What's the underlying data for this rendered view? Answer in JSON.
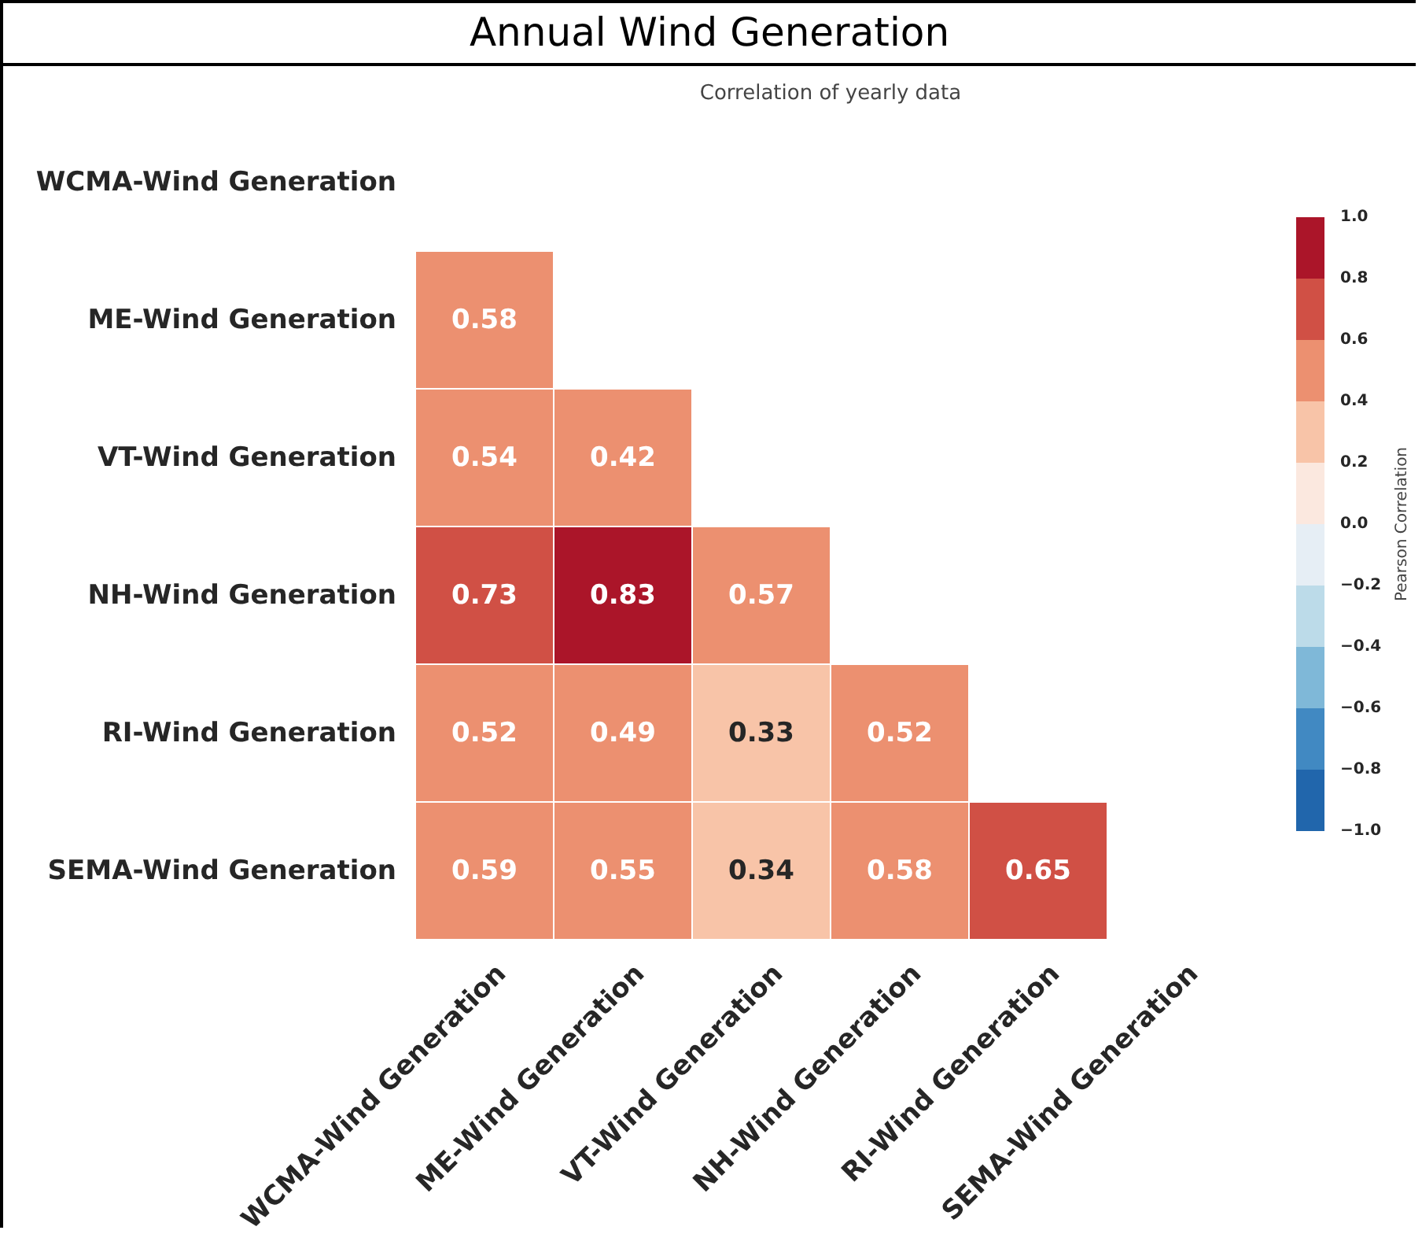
{
  "chart_data": {
    "type": "heatmap",
    "title": "Annual Wind Generation",
    "subtitle": "Correlation of yearly data",
    "categories": [
      "WCMA-Wind Generation",
      "ME-Wind Generation",
      "VT-Wind Generation",
      "NH-Wind Generation",
      "RI-Wind Generation",
      "SEMA-Wind Generation"
    ],
    "y_categories": [
      "WCMA-Wind Generation",
      "ME-Wind Generation",
      "VT-Wind Generation",
      "NH-Wind Generation",
      "RI-Wind Generation",
      "SEMA-Wind Generation"
    ],
    "cells": [
      [
        null,
        null,
        null,
        null,
        null,
        null
      ],
      [
        0.58,
        null,
        null,
        null,
        null,
        null
      ],
      [
        0.54,
        0.42,
        null,
        null,
        null,
        null
      ],
      [
        0.73,
        0.83,
        0.57,
        null,
        null,
        null
      ],
      [
        0.52,
        0.49,
        0.33,
        0.52,
        null,
        null
      ],
      [
        0.59,
        0.55,
        0.34,
        0.58,
        0.65,
        null
      ]
    ],
    "data_labels": true,
    "clabel": "Pearson Correlation",
    "clim": [
      -1.0,
      1.0
    ],
    "cticks": [
      {
        "value": 1,
        "label": "1.0"
      },
      {
        "value": 0.8,
        "label": "0.8"
      },
      {
        "value": 0.6,
        "label": "0.6"
      },
      {
        "value": 0.4,
        "label": "0.4"
      },
      {
        "value": 0.2,
        "label": "0.2"
      },
      {
        "value": 0,
        "label": "0.0"
      },
      {
        "value": -0.2,
        "label": "−0.2"
      },
      {
        "value": -0.4,
        "label": "−0.4"
      },
      {
        "value": -0.6,
        "label": "−0.6"
      },
      {
        "value": -0.8,
        "label": "−0.8"
      },
      {
        "value": -1,
        "label": "−1.0"
      }
    ]
  }
}
